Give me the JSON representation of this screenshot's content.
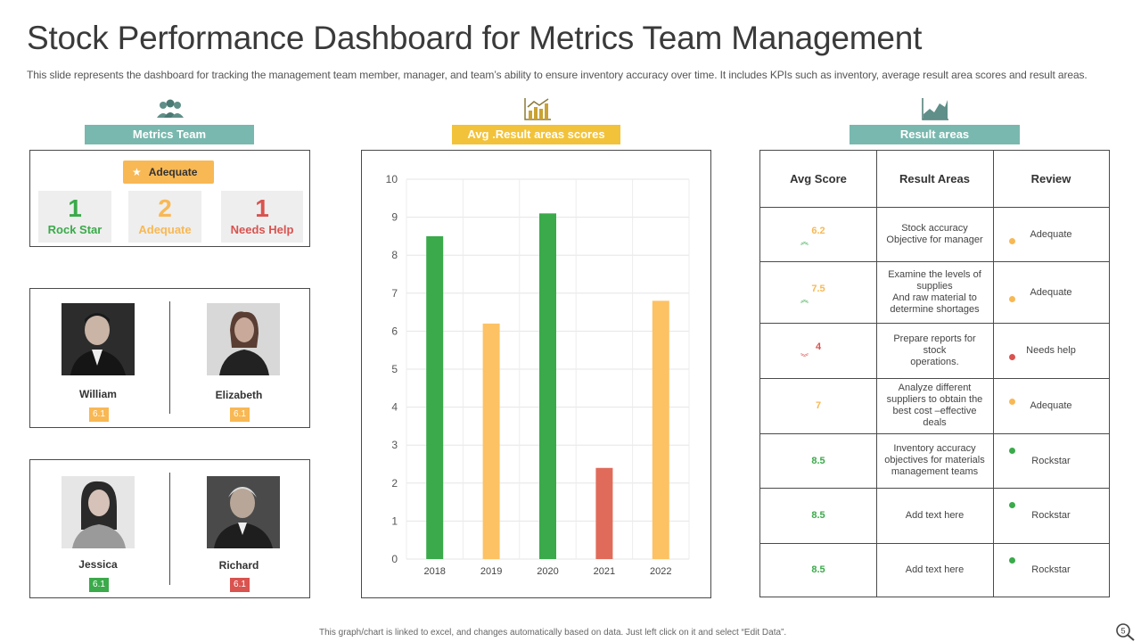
{
  "title": "Stock Performance Dashboard for Metrics Team Management",
  "subtitle": "This slide represents the dashboard for tracking the management team member, manager, and team’s ability to ensure inventory accuracy over time. It includes KPIs such as inventory, average result area scores and result areas.",
  "sections": {
    "metrics_team": "Metrics Team",
    "avg_scores": "Avg .Result areas scores",
    "result_areas": "Result areas"
  },
  "status": {
    "pill_label": "Adequate",
    "stats": [
      {
        "num": "1",
        "label": "Rock Star",
        "color": "#3aaa4a"
      },
      {
        "num": "2",
        "label": "Adequate",
        "color": "#f8b854"
      },
      {
        "num": "1",
        "label": "Needs Help",
        "color": "#d9534f"
      }
    ]
  },
  "people": [
    {
      "name": "William",
      "score": "6.1",
      "color": "#f8b854"
    },
    {
      "name": "Elizabeth",
      "score": "6.1",
      "color": "#f8b854"
    },
    {
      "name": "Jessica",
      "score": "6.1",
      "color": "#3aaa4a"
    },
    {
      "name": "Richard",
      "score": "6.1",
      "color": "#d9534f"
    }
  ],
  "chart_data": {
    "type": "bar",
    "title": "Avg .Result areas scores",
    "categories": [
      "2018",
      "2019",
      "2020",
      "2021",
      "2022"
    ],
    "values": [
      8.5,
      6.2,
      9.1,
      2.4,
      6.8
    ],
    "colors": [
      "#3aaa4a",
      "#fdc264",
      "#3aaa4a",
      "#e06b5a",
      "#fdc264"
    ],
    "ylim": [
      0,
      10
    ],
    "yticks": [
      "0",
      "1",
      "2",
      "3",
      "4",
      "5",
      "6",
      "7",
      "8",
      "9",
      "10"
    ],
    "grid": true,
    "xlabel": "",
    "ylabel": ""
  },
  "table": {
    "headers": [
      "Avg Score",
      "Result Areas",
      "Review"
    ],
    "rows": [
      {
        "score": "6.2",
        "trend": "up",
        "area": "Stock accuracy\nObjective for manager",
        "review": "Adequate",
        "color": "#f8b854"
      },
      {
        "score": "7.5",
        "trend": "up",
        "area": "Examine  the levels of\nsupplies\nAnd raw material to\ndetermine shortages",
        "review": "Adequate",
        "color": "#f8b854"
      },
      {
        "score": "4",
        "trend": "down",
        "area": "Prepare reports for stock\noperations.",
        "review": "Needs help",
        "color": "#d9534f"
      },
      {
        "score": "7",
        "trend": "none",
        "area": "Analyze different\nsuppliers to obtain the\nbest cost –effective deals",
        "review": "Adequate",
        "color": "#f8b854"
      },
      {
        "score": "8.5",
        "trend": "none",
        "area": "Inventory accuracy\nobjectives for materials\nmanagement  teams",
        "review": "Rockstar",
        "color": "#3aaa4a"
      },
      {
        "score": "8.5",
        "trend": "none",
        "area": "Add text here",
        "review": "Rockstar",
        "color": "#3aaa4a"
      },
      {
        "score": "8.5",
        "trend": "none",
        "area": "Add text here",
        "review": "Rockstar",
        "color": "#3aaa4a"
      }
    ]
  },
  "footer": "This graph/chart is linked to excel, and changes automatically based on data. Just left click on it and select “Edit Data”.",
  "page_number": "5",
  "icons": {
    "team": "team-icon",
    "bar_chart": "bar-chart-icon",
    "area_chart": "area-chart-icon",
    "star": "star-icon",
    "zoom": "zoom-icon"
  }
}
